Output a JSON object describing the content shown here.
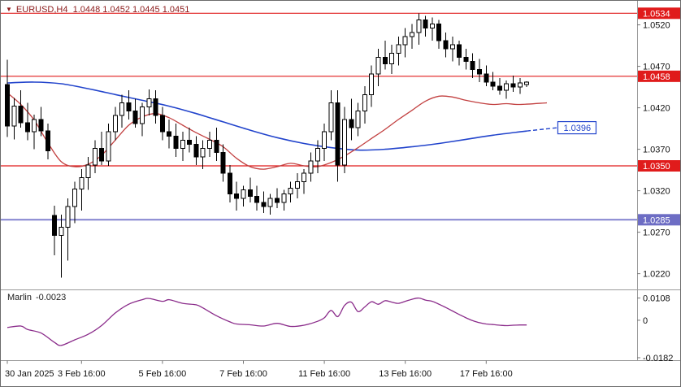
{
  "header": {
    "dropdown_icon": "▼",
    "symbol_info": "EURUSD,H4  1.0448 1.0452 1.0445 1.0451"
  },
  "indicator_panel": {
    "label": "Marlin",
    "value": "-0.0023"
  },
  "colors": {
    "background": "#ffffff",
    "candle": "#000000",
    "bull": "#ffffff",
    "bear": "#000000",
    "ma_blue": "#2244cc",
    "ma_red": "#c24040",
    "level_red": "#e01b1b",
    "level_blue": "#8282cf",
    "badge_blue": "#6d6dc4",
    "indicator": "#8a2b8a",
    "separator": "#9a9a9a",
    "header_text": "#8b1a1a",
    "axis_text": "#111111"
  },
  "chart_data": {
    "type": "candlestick",
    "symbol": "EURUSD",
    "timeframe": "H4",
    "ohlc_readout": {
      "open": "1.0448",
      "high": "1.0452",
      "low": "1.0445",
      "close": "1.0451"
    },
    "ylim": [
      1.0201,
      1.0549
    ],
    "grid": "off",
    "price_axis": {
      "ticks": [
        "1.0520",
        "1.0470",
        "1.0420",
        "1.0370",
        "1.0320",
        "1.0270",
        "1.0220"
      ]
    },
    "time_axis": {
      "labels": [
        {
          "text": "30 Jan 2025",
          "index": 0
        },
        {
          "text": "3 Feb 16:00",
          "index": 11
        },
        {
          "text": "5 Feb 16:00",
          "index": 23
        },
        {
          "text": "7 Feb 16:00",
          "index": 35
        },
        {
          "text": "11 Feb 16:00",
          "index": 47
        },
        {
          "text": "13 Feb 16:00",
          "index": 59
        },
        {
          "text": "17 Feb 16:00",
          "index": 71
        }
      ]
    },
    "levels": [
      {
        "label": "1.0534",
        "price": 1.0534,
        "color": "red"
      },
      {
        "label": "1.0458",
        "price": 1.0458,
        "color": "red"
      },
      {
        "label": "1.0350",
        "price": 1.035,
        "color": "red"
      },
      {
        "label": "1.0285",
        "price": 1.0285,
        "color": "blue"
      }
    ],
    "candles": [
      [
        1.0448,
        1.0478,
        1.0385,
        1.0398
      ],
      [
        1.0398,
        1.0432,
        1.0382,
        1.0422
      ],
      [
        1.0422,
        1.0441,
        1.0396,
        1.0402
      ],
      [
        1.0402,
        1.0426,
        1.0381,
        1.0391
      ],
      [
        1.0391,
        1.0412,
        1.037,
        1.0406
      ],
      [
        1.0406,
        1.0421,
        1.0386,
        1.0392
      ],
      [
        1.0392,
        1.0401,
        1.0358,
        1.0368
      ],
      [
        1.029,
        1.0302,
        1.0242,
        1.0266
      ],
      [
        1.0266,
        1.0291,
        1.0215,
        1.0276
      ],
      [
        1.0276,
        1.0311,
        1.0236,
        1.0301
      ],
      [
        1.0301,
        1.0331,
        1.0281,
        1.0322
      ],
      [
        1.0322,
        1.0346,
        1.0296,
        1.0336
      ],
      [
        1.0336,
        1.0361,
        1.0321,
        1.0351
      ],
      [
        1.0351,
        1.0381,
        1.0341,
        1.0371
      ],
      [
        1.0371,
        1.0391,
        1.0351,
        1.0356
      ],
      [
        1.0356,
        1.0401,
        1.035,
        1.0391
      ],
      [
        1.0391,
        1.0421,
        1.0381,
        1.0411
      ],
      [
        1.0411,
        1.0436,
        1.0396,
        1.0426
      ],
      [
        1.0426,
        1.0441,
        1.0406,
        1.0416
      ],
      [
        1.0416,
        1.0431,
        1.0396,
        1.0401
      ],
      [
        1.0401,
        1.0426,
        1.0386,
        1.0421
      ],
      [
        1.0421,
        1.0442,
        1.0411,
        1.0431
      ],
      [
        1.0431,
        1.0441,
        1.0401,
        1.0411
      ],
      [
        1.0411,
        1.0421,
        1.0381,
        1.0391
      ],
      [
        1.0391,
        1.0406,
        1.0371,
        1.0386
      ],
      [
        1.0386,
        1.0401,
        1.0361,
        1.0371
      ],
      [
        1.0371,
        1.0391,
        1.0356,
        1.0381
      ],
      [
        1.0381,
        1.0396,
        1.0366,
        1.0376
      ],
      [
        1.0376,
        1.0386,
        1.0351,
        1.0361
      ],
      [
        1.0361,
        1.0381,
        1.0346,
        1.0371
      ],
      [
        1.0371,
        1.0391,
        1.0361,
        1.0381
      ],
      [
        1.0381,
        1.0396,
        1.0356,
        1.0366
      ],
      [
        1.0366,
        1.0376,
        1.0331,
        1.0341
      ],
      [
        1.0341,
        1.0351,
        1.0306,
        1.0316
      ],
      [
        1.0316,
        1.0331,
        1.0296,
        1.0311
      ],
      [
        1.0311,
        1.0326,
        1.0301,
        1.0321
      ],
      [
        1.0321,
        1.0336,
        1.0306,
        1.0313
      ],
      [
        1.0313,
        1.0326,
        1.0296,
        1.0306
      ],
      [
        1.0306,
        1.0319,
        1.0293,
        1.0301
      ],
      [
        1.0301,
        1.0316,
        1.0291,
        1.0311
      ],
      [
        1.0311,
        1.0323,
        1.0299,
        1.0306
      ],
      [
        1.0306,
        1.0321,
        1.0296,
        1.0316
      ],
      [
        1.0316,
        1.0331,
        1.0306,
        1.0323
      ],
      [
        1.0323,
        1.0341,
        1.0311,
        1.0331
      ],
      [
        1.0331,
        1.0346,
        1.0316,
        1.0341
      ],
      [
        1.0341,
        1.0366,
        1.0331,
        1.0356
      ],
      [
        1.0356,
        1.0381,
        1.0341,
        1.0371
      ],
      [
        1.0371,
        1.0401,
        1.0356,
        1.0391
      ],
      [
        1.0391,
        1.0441,
        1.0381,
        1.0426
      ],
      [
        1.0426,
        1.0441,
        1.0331,
        1.0351
      ],
      [
        1.0351,
        1.0421,
        1.0341,
        1.0406
      ],
      [
        1.0406,
        1.0431,
        1.0381,
        1.0396
      ],
      [
        1.0396,
        1.0426,
        1.0386,
        1.0416
      ],
      [
        1.0416,
        1.0446,
        1.0401,
        1.0436
      ],
      [
        1.0436,
        1.0471,
        1.0421,
        1.0461
      ],
      [
        1.0461,
        1.0491,
        1.0446,
        1.0481
      ],
      [
        1.0481,
        1.0501,
        1.0466,
        1.0473
      ],
      [
        1.0473,
        1.0496,
        1.0461,
        1.0486
      ],
      [
        1.0486,
        1.0506,
        1.0471,
        1.0496
      ],
      [
        1.0496,
        1.0516,
        1.0481,
        1.0506
      ],
      [
        1.0506,
        1.0521,
        1.0491,
        1.0511
      ],
      [
        1.0511,
        1.0534,
        1.0496,
        1.0526
      ],
      [
        1.0526,
        1.0531,
        1.0506,
        1.0516
      ],
      [
        1.0516,
        1.0529,
        1.0501,
        1.0521
      ],
      [
        1.0521,
        1.0526,
        1.0491,
        1.0501
      ],
      [
        1.0501,
        1.0511,
        1.0481,
        1.0491
      ],
      [
        1.0491,
        1.0506,
        1.0476,
        1.0496
      ],
      [
        1.0496,
        1.0501,
        1.0471,
        1.0481
      ],
      [
        1.0481,
        1.0491,
        1.0466,
        1.0476
      ],
      [
        1.0476,
        1.0486,
        1.0456,
        1.0466
      ],
      [
        1.0466,
        1.0479,
        1.0451,
        1.0461
      ],
      [
        1.0461,
        1.0471,
        1.0446,
        1.0451
      ],
      [
        1.0451,
        1.0463,
        1.0441,
        1.0446
      ],
      [
        1.0446,
        1.0456,
        1.0436,
        1.0441
      ],
      [
        1.0441,
        1.0453,
        1.0431,
        1.0449
      ],
      [
        1.0449,
        1.0459,
        1.0439,
        1.0445
      ],
      [
        1.0445,
        1.0456,
        1.0437,
        1.045
      ],
      [
        1.0448,
        1.0452,
        1.0445,
        1.0451
      ]
    ],
    "ma_blue": {
      "points": [
        [
          0,
          1.045
        ],
        [
          4,
          1.0451
        ],
        [
          8,
          1.0449
        ],
        [
          12,
          1.0443
        ],
        [
          16,
          1.0436
        ],
        [
          20,
          1.0429
        ],
        [
          24,
          1.0422
        ],
        [
          28,
          1.0413
        ],
        [
          32,
          1.0403
        ],
        [
          36,
          1.0393
        ],
        [
          40,
          1.0384
        ],
        [
          44,
          1.0377
        ],
        [
          48,
          1.0372
        ],
        [
          52,
          1.0369
        ],
        [
          56,
          1.037
        ],
        [
          60,
          1.0373
        ],
        [
          64,
          1.0377
        ],
        [
          68,
          1.0382
        ],
        [
          72,
          1.0387
        ],
        [
          77,
          1.0392
        ]
      ],
      "dashed_tail": [
        [
          77,
          1.0392
        ],
        [
          81.5,
          1.0396
        ]
      ],
      "projection_badge": {
        "label": "1.0396",
        "price": 1.0396
      }
    },
    "ma_red": {
      "points": [
        [
          0,
          1.0438
        ],
        [
          2,
          1.0424
        ],
        [
          4,
          1.0405
        ],
        [
          6,
          1.0378
        ],
        [
          8,
          1.0355
        ],
        [
          10,
          1.0349
        ],
        [
          12,
          1.0352
        ],
        [
          14,
          1.0363
        ],
        [
          16,
          1.0381
        ],
        [
          18,
          1.0399
        ],
        [
          20,
          1.0409
        ],
        [
          22,
          1.0413
        ],
        [
          24,
          1.0408
        ],
        [
          26,
          1.0399
        ],
        [
          28,
          1.039
        ],
        [
          30,
          1.0382
        ],
        [
          32,
          1.0373
        ],
        [
          34,
          1.0359
        ],
        [
          36,
          1.0349
        ],
        [
          38,
          1.0346
        ],
        [
          40,
          1.0349
        ],
        [
          42,
          1.0353
        ],
        [
          44,
          1.035
        ],
        [
          46,
          1.0349
        ],
        [
          48,
          1.0354
        ],
        [
          50,
          1.0362
        ],
        [
          52,
          1.0372
        ],
        [
          54,
          1.0383
        ],
        [
          56,
          1.0394
        ],
        [
          58,
          1.0406
        ],
        [
          60,
          1.0417
        ],
        [
          62,
          1.0428
        ],
        [
          64,
          1.0434
        ],
        [
          66,
          1.0433
        ],
        [
          68,
          1.0429
        ],
        [
          70,
          1.0426
        ],
        [
          72,
          1.0424
        ],
        [
          74,
          1.0425
        ],
        [
          76,
          1.0424
        ],
        [
          80,
          1.0426
        ]
      ]
    },
    "indicator": {
      "name": "Marlin",
      "current_value": -0.0023,
      "vlim": [
        -0.019,
        0.013
      ],
      "scale_labels": [
        "0.0108",
        "0",
        "-0.0182"
      ],
      "points": [
        [
          0,
          -0.0035
        ],
        [
          2,
          -0.0028
        ],
        [
          3,
          -0.0045
        ],
        [
          5,
          -0.0062
        ],
        [
          7,
          -0.0108
        ],
        [
          8,
          -0.0122
        ],
        [
          10,
          -0.0095
        ],
        [
          12,
          -0.0068
        ],
        [
          14,
          -0.0025
        ],
        [
          16,
          0.0035
        ],
        [
          18,
          0.0078
        ],
        [
          20,
          0.01
        ],
        [
          21,
          0.0106
        ],
        [
          23,
          0.0092
        ],
        [
          24,
          0.01
        ],
        [
          26,
          0.0082
        ],
        [
          28,
          0.0075
        ],
        [
          29,
          0.006
        ],
        [
          31,
          0.0022
        ],
        [
          33,
          -0.0008
        ],
        [
          34,
          -0.0018
        ],
        [
          36,
          -0.0022
        ],
        [
          38,
          -0.0028
        ],
        [
          40,
          -0.0015
        ],
        [
          42,
          -0.003
        ],
        [
          44,
          -0.0024
        ],
        [
          46,
          -0.0005
        ],
        [
          47,
          0.0012
        ],
        [
          48,
          0.0048
        ],
        [
          49,
          0.0018
        ],
        [
          50,
          0.0072
        ],
        [
          51,
          0.0088
        ],
        [
          52,
          0.0042
        ],
        [
          53,
          0.0065
        ],
        [
          54,
          0.009
        ],
        [
          55,
          0.0078
        ],
        [
          56,
          0.0095
        ],
        [
          57,
          0.0088
        ],
        [
          58,
          0.0082
        ],
        [
          59,
          0.0092
        ],
        [
          60,
          0.0102
        ],
        [
          61,
          0.0108
        ],
        [
          62,
          0.0098
        ],
        [
          63,
          0.0092
        ],
        [
          64,
          0.0078
        ],
        [
          65,
          0.0062
        ],
        [
          66,
          0.0045
        ],
        [
          67,
          0.0028
        ],
        [
          68,
          0.0012
        ],
        [
          69,
          -0.0002
        ],
        [
          70,
          -0.0012
        ],
        [
          71,
          -0.0018
        ],
        [
          72,
          -0.0021
        ],
        [
          73,
          -0.0024
        ],
        [
          74,
          -0.0026
        ],
        [
          75,
          -0.0024
        ],
        [
          76,
          -0.0023
        ],
        [
          77,
          -0.0023
        ]
      ]
    }
  }
}
